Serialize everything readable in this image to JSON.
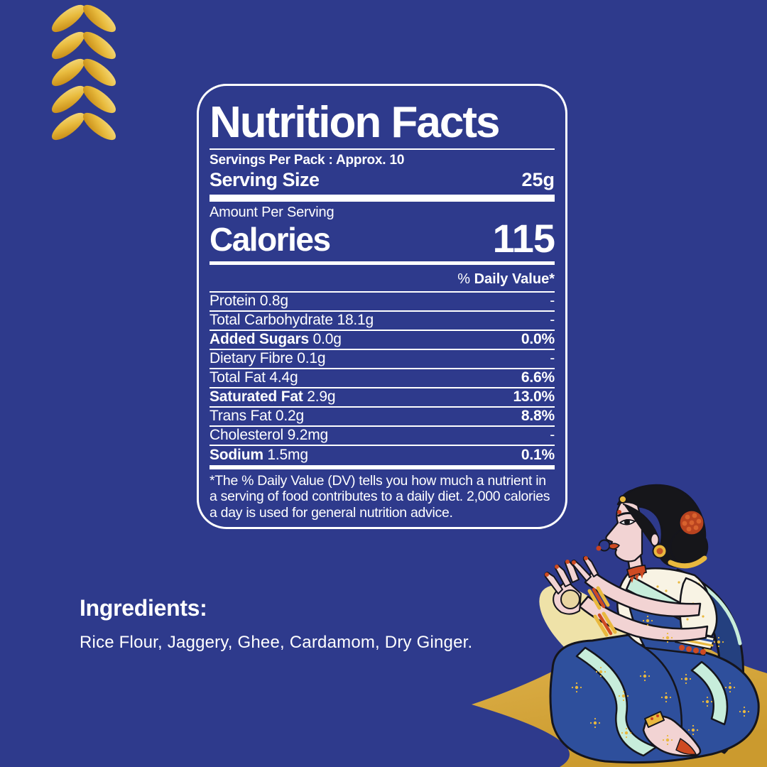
{
  "colors": {
    "background": "#2E3A8C",
    "panel_border": "#FFFFFF",
    "text": "#FFFFFF",
    "wheat_gold_dark": "#BE7E0A",
    "wheat_gold_light": "#F7E08C",
    "star_gold": "#DFB24A"
  },
  "nutrition_panel": {
    "title": "Nutrition Facts",
    "servings_per_pack": "Servings Per Pack : Approx. 10",
    "serving_size_label": "Serving Size",
    "serving_size_value": "25g",
    "amount_per_serving": "Amount Per Serving",
    "calories_label": "Calories",
    "calories_value": "115",
    "daily_value_prefix": "%",
    "daily_value_label": " Daily Value*",
    "rows": [
      {
        "label_bold": "",
        "label": "Protein 0.8g",
        "value": "-",
        "value_bold": false
      },
      {
        "label_bold": "",
        "label": "Total Carbohydrate 18.1g",
        "value": "-",
        "value_bold": false
      },
      {
        "label_bold": "Added Sugars",
        "label": " 0.0g",
        "value": "0.0%",
        "value_bold": true
      },
      {
        "label_bold": "",
        "label": "Dietary Fibre 0.1g",
        "value": "-",
        "value_bold": false
      },
      {
        "label_bold": "",
        "label": "Total Fat 4.4g",
        "value": "6.6%",
        "value_bold": true
      },
      {
        "label_bold": "Saturated Fat",
        "label": " 2.9g",
        "value": "13.0%",
        "value_bold": true
      },
      {
        "label_bold": "",
        "label": "Trans Fat 0.2g",
        "value": "8.8%",
        "value_bold": true
      },
      {
        "label_bold": "",
        "label": "Cholesterol 9.2mg",
        "value": "-",
        "value_bold": false
      },
      {
        "label_bold": "Sodium",
        "label": " 1.5mg",
        "value": "0.1%",
        "value_bold": true
      }
    ],
    "footnote": "*The % Daily Value (DV) tells you how much a nutrient in a serving of food contributes to a daily diet. 2,000 calories a day is used for general nutrition advice."
  },
  "ingredients": {
    "heading": "Ingredients:",
    "text": "Rice Flour, Jaggery, Ghee, Cardamom, Dry Ginger."
  },
  "decor": {
    "wheat_ornament": "golden-wheat-chevrons",
    "star_ornament": "golden-star",
    "illustration": "seated-woman-in-sari-rolling-laddu"
  }
}
